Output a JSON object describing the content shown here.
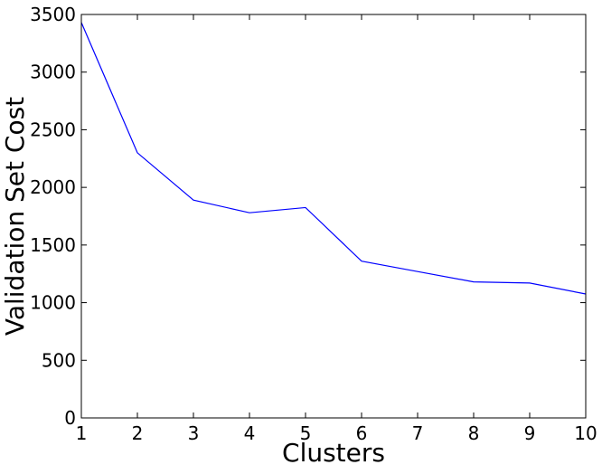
{
  "chart_data": {
    "type": "line",
    "title": "",
    "xlabel": "Clusters",
    "ylabel": "Validation Set Cost",
    "xlim": [
      1,
      10
    ],
    "ylim": [
      0,
      3500
    ],
    "xticks": [
      1,
      2,
      3,
      4,
      5,
      6,
      7,
      8,
      9,
      10
    ],
    "yticks": [
      0,
      500,
      1000,
      1500,
      2000,
      2500,
      3000,
      3500
    ],
    "grid": false,
    "legend": "none",
    "series": [
      {
        "color": "#0000ff",
        "x": [
          1,
          2,
          3,
          4,
          5,
          6,
          7,
          8,
          9,
          10
        ],
        "y": [
          3430,
          2300,
          1890,
          1780,
          1825,
          1360,
          1270,
          1180,
          1170,
          1075
        ]
      }
    ]
  }
}
